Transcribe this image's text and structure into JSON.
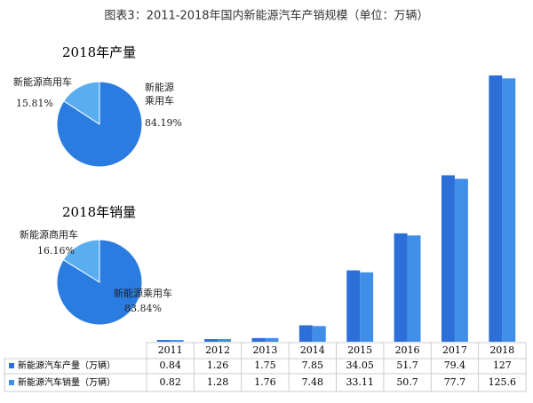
{
  "chart_data": [
    {
      "type": "bar",
      "title": "图表3：2011-2018年国内新能源汽车产销规模（单位：万辆）",
      "categories": [
        "2011",
        "2012",
        "2013",
        "2014",
        "2015",
        "2016",
        "2017",
        "2018"
      ],
      "series": [
        {
          "name": "新能源汽车产量（万辆）",
          "color": "#2c6fd9",
          "values": [
            0.84,
            1.26,
            1.75,
            7.85,
            34.05,
            51.7,
            79.4,
            127
          ]
        },
        {
          "name": "新能源汽车销量（万辆）",
          "color": "#3f8ee8",
          "values": [
            0.82,
            1.28,
            1.76,
            7.48,
            33.11,
            50.7,
            77.7,
            125.6
          ]
        }
      ]
    },
    {
      "type": "pie",
      "title": "2018年产量",
      "categories": [
        "新能源商用车",
        "新能源乘用车"
      ],
      "values": [
        15.81,
        84.19
      ],
      "value_labels": [
        "15.81%",
        "84.19%"
      ],
      "colors": [
        "#5aaeef",
        "#2b7ce0"
      ]
    },
    {
      "type": "pie",
      "title": "2018年销量",
      "categories": [
        "新能源商用车",
        "新能源乘用车"
      ],
      "values": [
        16.16,
        83.84
      ],
      "value_labels": [
        "16.16%",
        "83.84%"
      ],
      "colors": [
        "#5aaeef",
        "#2b7ce0"
      ]
    }
  ]
}
